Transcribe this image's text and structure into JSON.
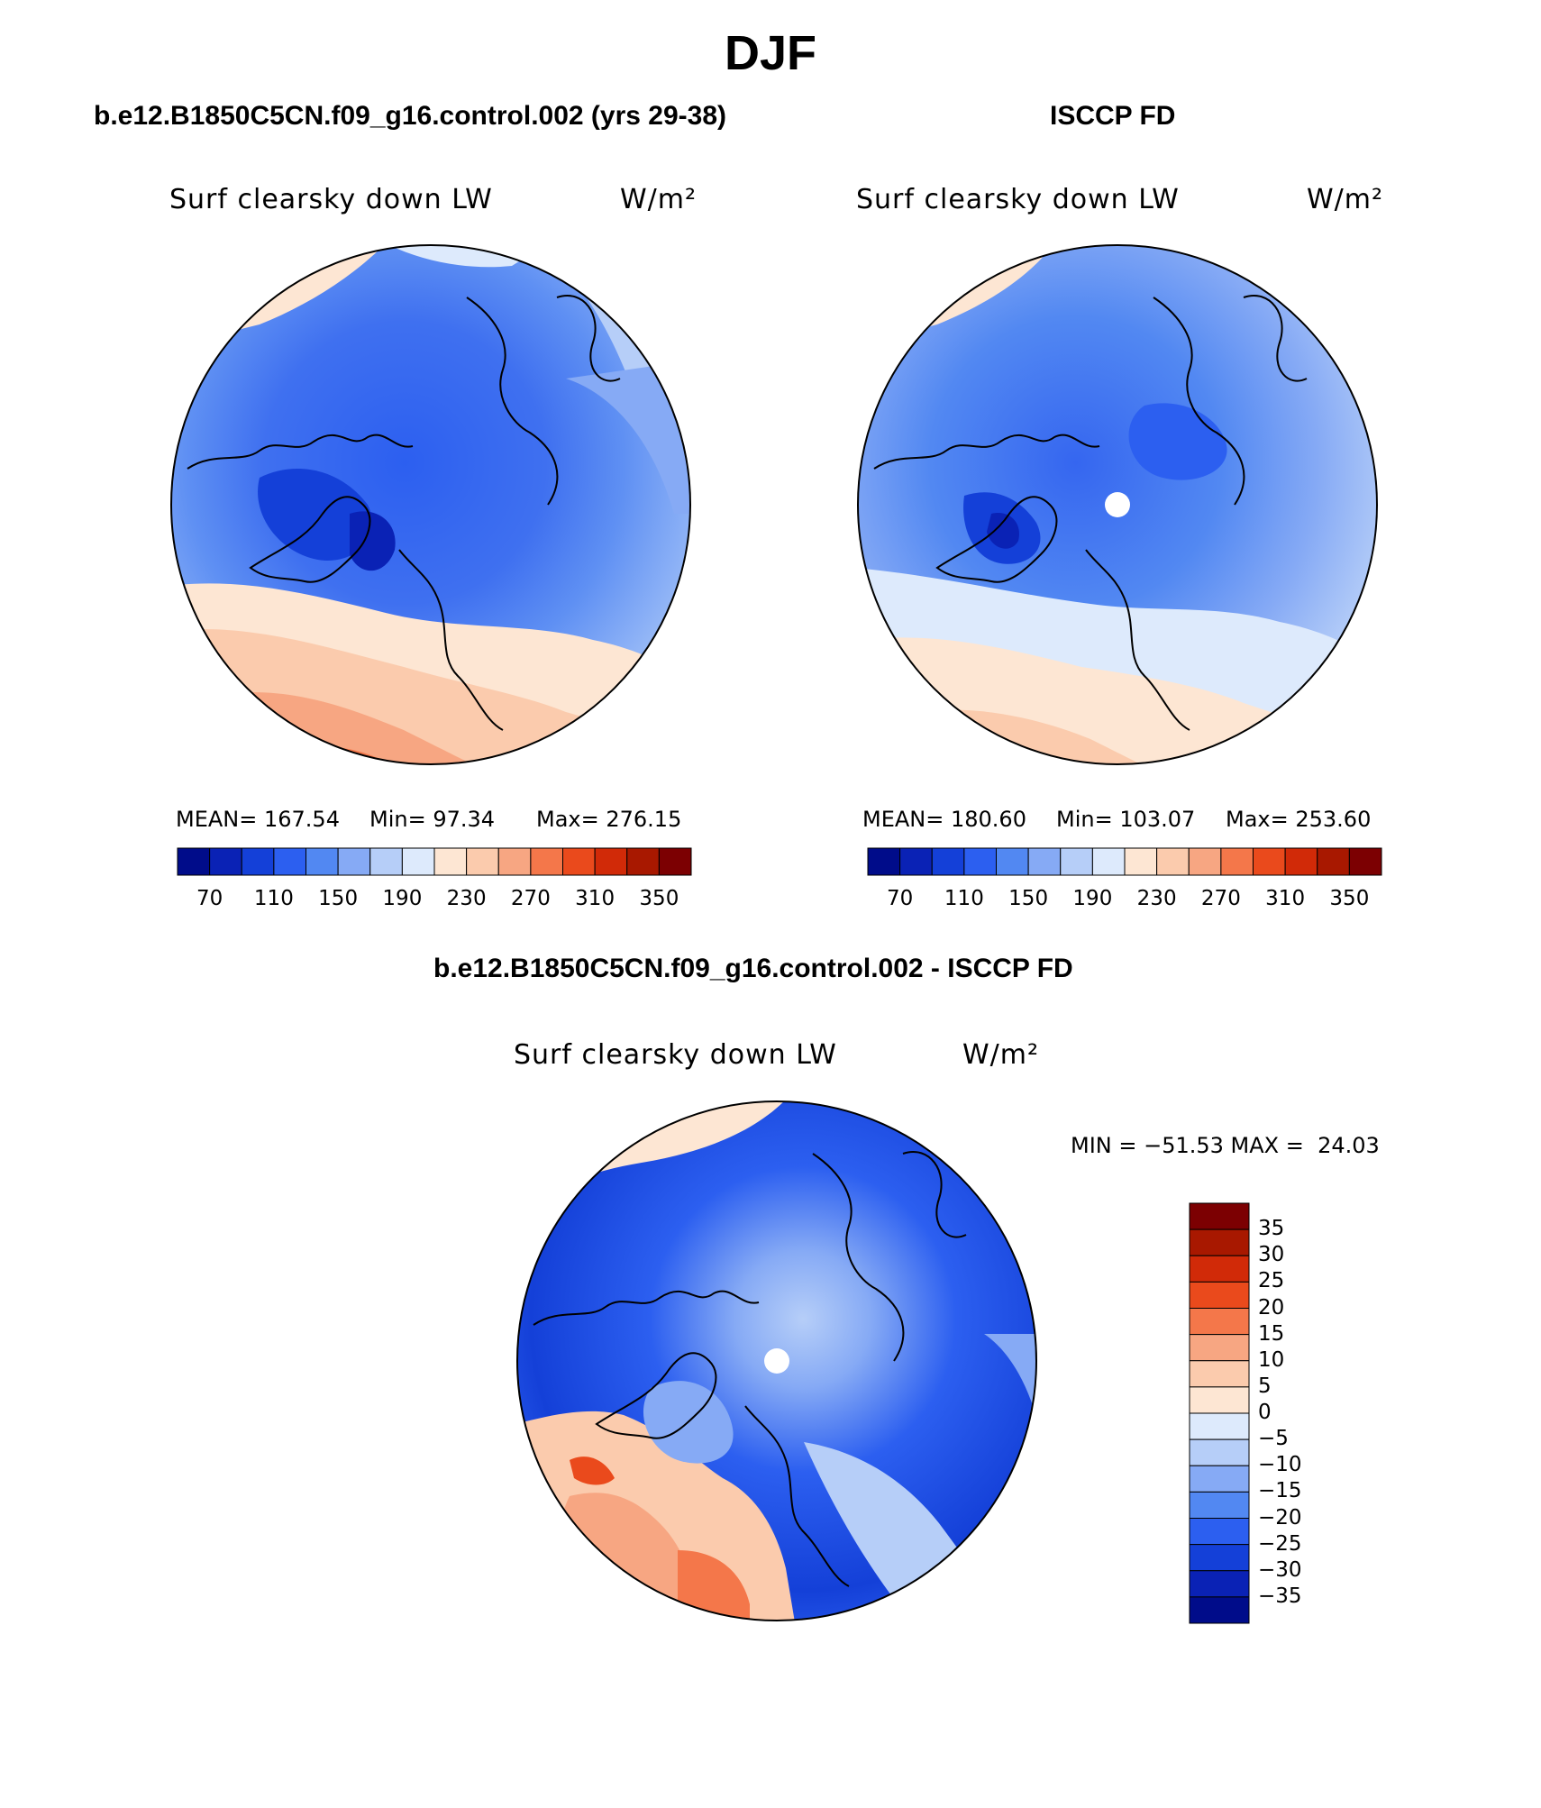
{
  "title": "DJF",
  "panels": {
    "model": {
      "title": "b.e12.B1850C5CN.f09_g16.control.002 (yrs 29-38)",
      "variable": "Surf clearsky down LW",
      "units": "W/m²",
      "mean": "MEAN= 167.54",
      "min": "Min= 97.34",
      "max": "Max= 276.15"
    },
    "obs": {
      "title": "ISCCP FD",
      "variable": "Surf clearsky down LW",
      "units": "W/m²",
      "mean": "MEAN= 180.60",
      "min": "Min= 103.07",
      "max": "Max= 253.60"
    },
    "diff": {
      "title": "b.e12.B1850C5CN.f09_g16.control.002 - ISCCP FD",
      "variable": "Surf clearsky down LW",
      "units": "W/m²",
      "minmax": "MIN = −51.53 MAX =  24.03"
    }
  },
  "colorbar_abs": {
    "colors": [
      "#000c8a",
      "#0a22b5",
      "#1440d8",
      "#2c5ff0",
      "#5288f2",
      "#86aaf5",
      "#b6cef8",
      "#ddeafc",
      "#fde6d3",
      "#fbcbad",
      "#f7a682",
      "#f4774a",
      "#ea4a1c",
      "#d12a08",
      "#a81800",
      "#7c0002"
    ],
    "tick_labels": [
      "70",
      "110",
      "150",
      "190",
      "230",
      "270",
      "310",
      "350"
    ]
  },
  "colorbar_diff": {
    "colors": [
      "#7c0002",
      "#a81800",
      "#d12a08",
      "#ea4a1c",
      "#f4774a",
      "#f7a682",
      "#fbcbad",
      "#fde6d3",
      "#ddeafc",
      "#b6cef8",
      "#86aaf5",
      "#5288f2",
      "#2c5ff0",
      "#1440d8",
      "#0a22b5",
      "#000c8a"
    ],
    "tick_labels": [
      "35",
      "30",
      "25",
      "20",
      "15",
      "10",
      "5",
      "0",
      "−5",
      "−10",
      "−15",
      "−20",
      "−25",
      "−30",
      "−35"
    ]
  }
}
